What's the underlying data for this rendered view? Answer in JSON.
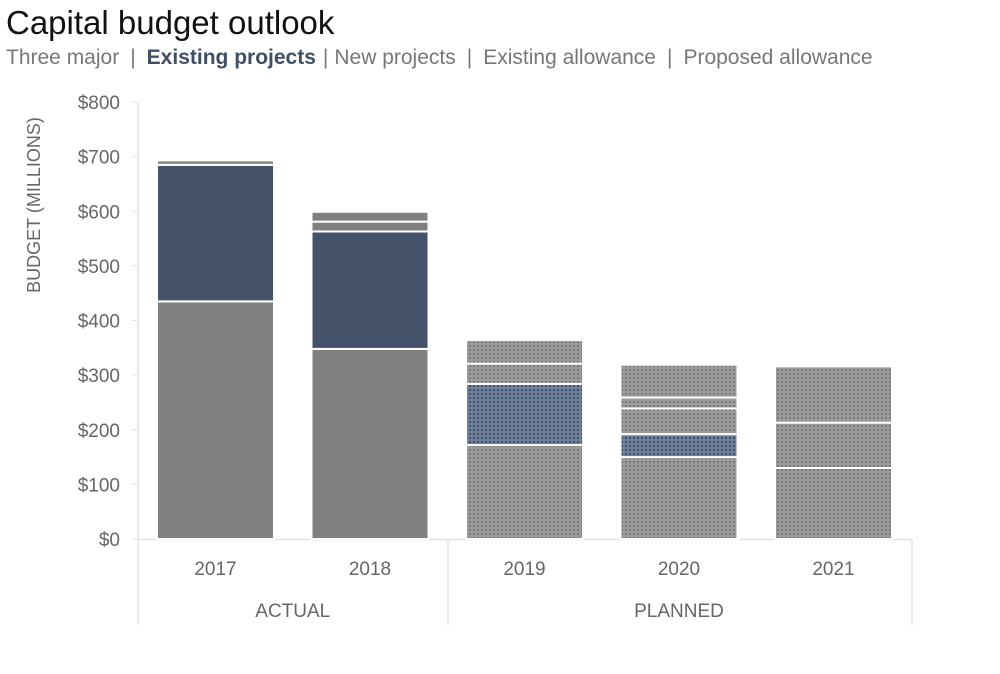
{
  "colors": {
    "existing_projects": "#44536a",
    "base_gray": "#808080",
    "text": "#666666",
    "axis": "#e2e2e2",
    "title": "#111111"
  },
  "chart_data": {
    "type": "bar",
    "stacked": true,
    "title": "Capital budget outlook",
    "legend": {
      "separator": "|",
      "entries": [
        "Three major",
        "Existing projects",
        "New projects",
        "Existing allowance",
        "Proposed allowance"
      ],
      "highlighted": "Existing projects"
    },
    "ylabel": "BUDGET (MILLIONS)",
    "ylim": [
      0,
      800
    ],
    "yticks": [
      {
        "value": 0,
        "label": "$0"
      },
      {
        "value": 100,
        "label": "$100"
      },
      {
        "value": 200,
        "label": "$200"
      },
      {
        "value": 300,
        "label": "$300"
      },
      {
        "value": 400,
        "label": "$400"
      },
      {
        "value": 500,
        "label": "$500"
      },
      {
        "value": 600,
        "label": "$600"
      },
      {
        "value": 700,
        "label": "$700"
      },
      {
        "value": 800,
        "label": "$800"
      }
    ],
    "categories": [
      "2017",
      "2018",
      "2019",
      "2020",
      "2021"
    ],
    "groups": [
      {
        "label": "ACTUAL",
        "categories": [
          "2017",
          "2018"
        ]
      },
      {
        "label": "PLANNED",
        "categories": [
          "2019",
          "2020",
          "2021"
        ]
      }
    ],
    "planned_categories": [
      "2019",
      "2020",
      "2021"
    ],
    "series": [
      {
        "name": "Three major",
        "values": [
          435,
          348,
          172,
          150,
          130
        ]
      },
      {
        "name": "Existing projects",
        "values": [
          250,
          215,
          112,
          42,
          0
        ]
      },
      {
        "name": "New projects",
        "values": [
          0,
          0,
          0,
          47,
          83
        ]
      },
      {
        "name": "Existing allowance",
        "values": [
          8,
          18,
          37,
          20,
          0
        ]
      },
      {
        "name": "Proposed allowance",
        "values": [
          0,
          18,
          43,
          60,
          103
        ]
      }
    ]
  }
}
